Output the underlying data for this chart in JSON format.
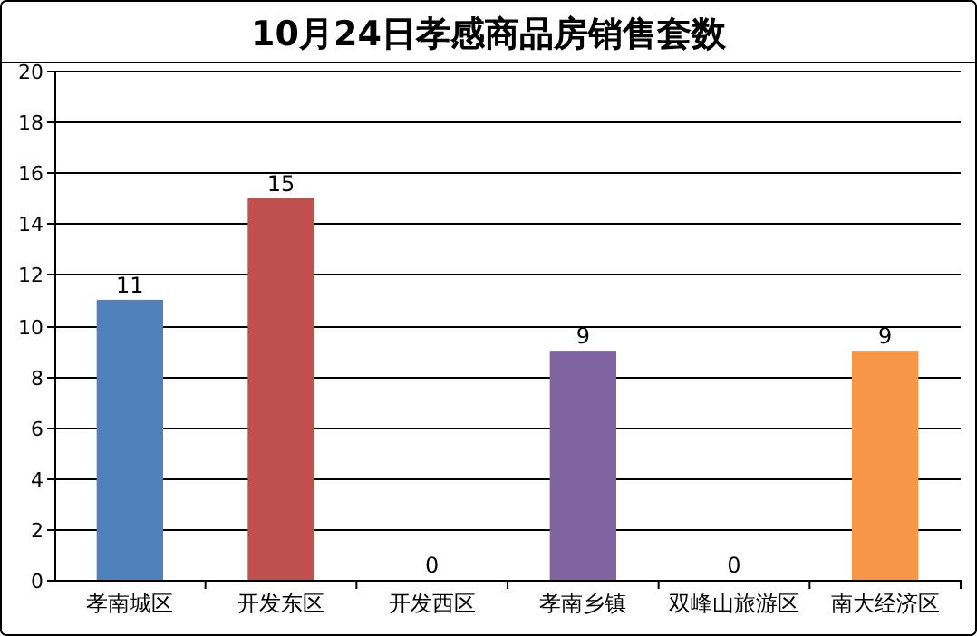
{
  "chart_data": {
    "type": "bar",
    "title": "10月24日孝感商品房销售套数",
    "categories": [
      "孝南城区",
      "开发东区",
      "开发西区",
      "孝南乡镇",
      "双峰山旅游区",
      "南大经济区"
    ],
    "values": [
      11,
      15,
      0,
      9,
      0,
      9
    ],
    "colors": [
      "#4f81bd",
      "#c0504d",
      "#9bbb59",
      "#8064a2",
      "#4bacc6",
      "#f79646"
    ],
    "ylim": [
      0,
      20
    ],
    "yticks": [
      0,
      2,
      4,
      6,
      8,
      10,
      12,
      14,
      16,
      18,
      20
    ],
    "grid": "y",
    "data_labels": true
  }
}
